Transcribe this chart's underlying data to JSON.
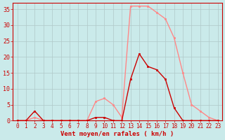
{
  "x": [
    0,
    1,
    2,
    3,
    4,
    5,
    6,
    7,
    8,
    9,
    10,
    11,
    12,
    13,
    14,
    15,
    16,
    17,
    18,
    19,
    20,
    21,
    22,
    23
  ],
  "y_moyen": [
    0,
    0,
    3,
    0,
    0,
    0,
    0,
    0,
    0,
    1,
    1,
    0,
    0,
    13,
    21,
    17,
    16,
    13,
    4,
    0,
    0,
    0,
    0,
    0
  ],
  "y_rafales": [
    0,
    0,
    1,
    0,
    0,
    0,
    0,
    0,
    0,
    6,
    7,
    5,
    1,
    36,
    36,
    36,
    34,
    32,
    26,
    15,
    5,
    3,
    1,
    0
  ],
  "xlabel": "Vent moyen/en rafales ( km/h )",
  "xlim_min": -0.5,
  "xlim_max": 23.5,
  "ylim_min": 0,
  "ylim_max": 37,
  "yticks": [
    0,
    5,
    10,
    15,
    20,
    25,
    30,
    35
  ],
  "xticks": [
    0,
    1,
    2,
    3,
    4,
    5,
    6,
    7,
    8,
    9,
    10,
    11,
    12,
    13,
    14,
    15,
    16,
    17,
    18,
    19,
    20,
    21,
    22,
    23
  ],
  "bg_color": "#caeaea",
  "grid_color": "#b0c8c8",
  "line_color_moyen": "#cc0000",
  "line_color_rafales": "#ff8888",
  "tick_color": "#cc0000",
  "label_color": "#cc0000",
  "spine_color": "#cc0000",
  "tick_fontsize": 5.5,
  "xlabel_fontsize": 6.5
}
